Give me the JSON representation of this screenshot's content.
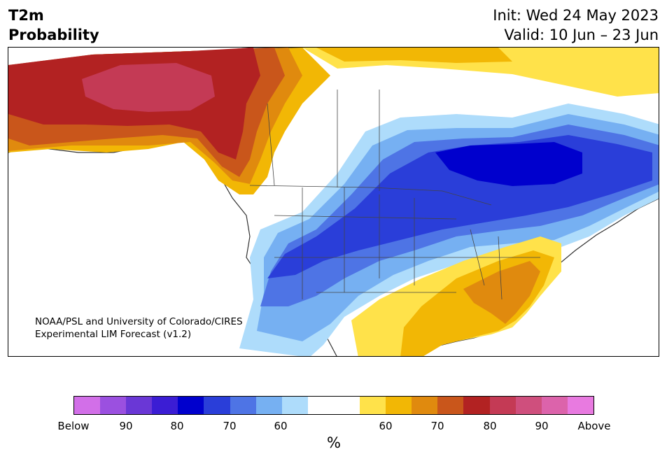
{
  "header": {
    "title_line1": "T2m",
    "title_line2": "Probability",
    "init_text": "Init: Wed 24 May 2023",
    "valid_text": "Valid: 10 Jun – 23 Jun"
  },
  "credit": {
    "line1": "NOAA/PSL and University of Colorado/CIRES",
    "line2": "Experimental LIM Forecast (v1.2)"
  },
  "colorbar": {
    "colors": [
      "#d26fe8",
      "#9b50e0",
      "#6a37d6",
      "#3b1dd4",
      "#0000cd",
      "#2a3ed9",
      "#4e74e5",
      "#76b0f2",
      "#aedcfb",
      "#ffffff",
      "#ffffff",
      "#ffe24a",
      "#f2b705",
      "#e08a0e",
      "#c9561b",
      "#b22222",
      "#c43a55",
      "#cf4f7d",
      "#dc63ab",
      "#e87ae0"
    ],
    "tick_labels": [
      "Below",
      "90",
      "80",
      "70",
      "60",
      "60",
      "70",
      "80",
      "90",
      "Above"
    ],
    "unit": "%"
  },
  "map": {
    "colors": {
      "ocean": "#ffffff",
      "deep_red": "#b22222",
      "crimson": "#c43a55",
      "dark_orange": "#c9561b",
      "orange": "#e08a0e",
      "amber": "#f2b705",
      "yellow": "#ffe24a",
      "lightest_blue": "#aedcfb",
      "light_blue": "#76b0f2",
      "mid_blue": "#4e74e5",
      "blue": "#2a3ed9",
      "deep_blue": "#0000cd",
      "coast": "#333333"
    }
  }
}
